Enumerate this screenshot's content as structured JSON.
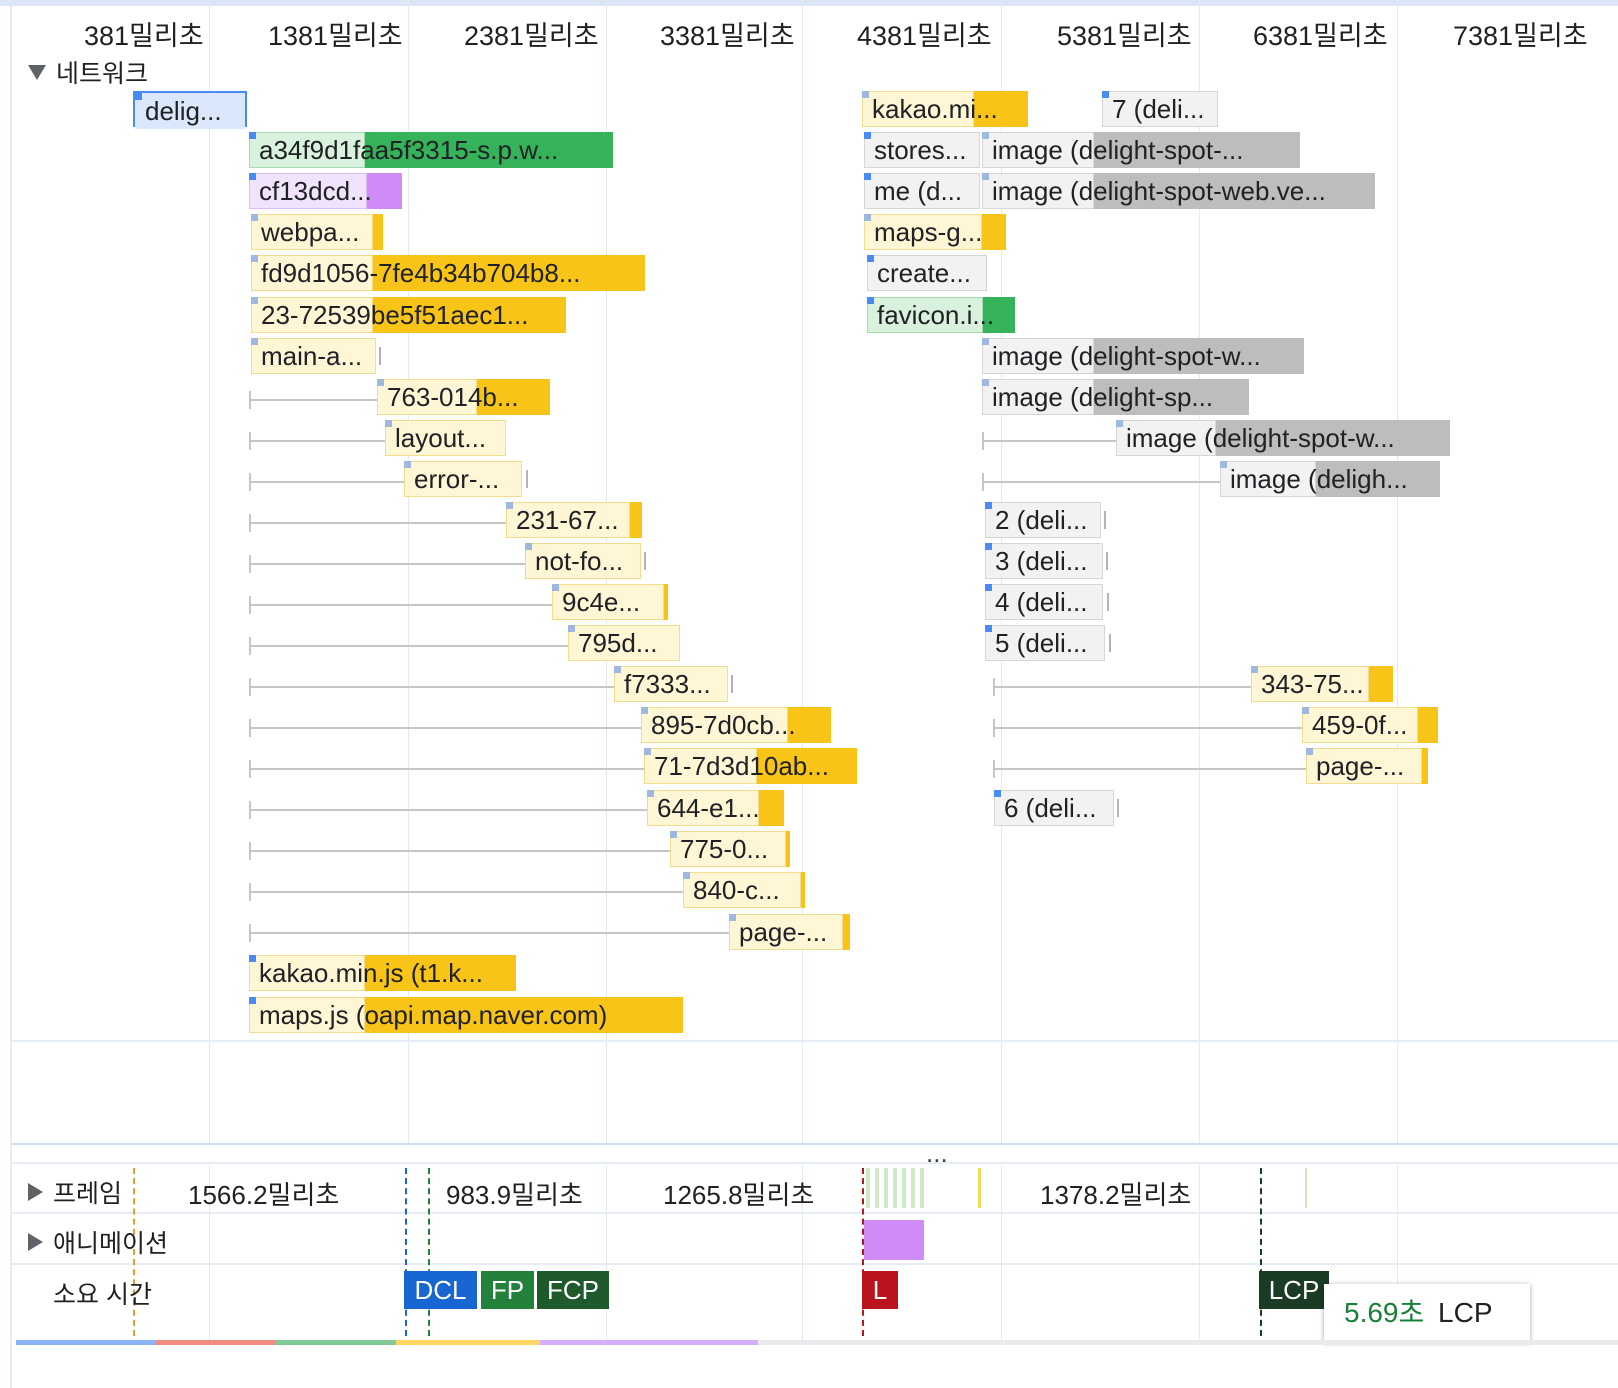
{
  "ruler": {
    "ticks": [
      "381밀리초",
      "1381밀리초",
      "2381밀리초",
      "3381밀리초",
      "4381밀리초",
      "5381밀리초",
      "6381밀리초",
      "7381밀리초"
    ]
  },
  "network": {
    "section_label": "네트워크",
    "requests": [
      {
        "label": "delig...",
        "type": "selected"
      },
      {
        "label": "a34f9d1faa5f3315-s.p.w...",
        "type": "font"
      },
      {
        "label": "cf13dcd...",
        "type": "style"
      },
      {
        "label": "webpa...",
        "type": "script"
      },
      {
        "label": "fd9d1056-7fe4b34b704b8...",
        "type": "script"
      },
      {
        "label": "23-72539be5f51aec1...",
        "type": "script"
      },
      {
        "label": "main-a...",
        "type": "script"
      },
      {
        "label": "763-014b...",
        "type": "script"
      },
      {
        "label": "layout...",
        "type": "script"
      },
      {
        "label": "error-...",
        "type": "script"
      },
      {
        "label": "231-67...",
        "type": "script"
      },
      {
        "label": "not-fo...",
        "type": "script"
      },
      {
        "label": "9c4e...",
        "type": "script"
      },
      {
        "label": "795d...",
        "type": "script"
      },
      {
        "label": "f7333...",
        "type": "script"
      },
      {
        "label": "895-7d0cb...",
        "type": "script"
      },
      {
        "label": "71-7d3d10ab...",
        "type": "script"
      },
      {
        "label": "644-e1...",
        "type": "script"
      },
      {
        "label": "775-0...",
        "type": "script"
      },
      {
        "label": "840-c...",
        "type": "script"
      },
      {
        "label": "page-...",
        "type": "script"
      },
      {
        "label": "kakao.min.js (t1.k...",
        "type": "script"
      },
      {
        "label": "maps.js (oapi.map.naver.com)",
        "type": "script"
      },
      {
        "label": "kakao.mi...",
        "type": "script"
      },
      {
        "label": "stores...",
        "type": "other"
      },
      {
        "label": "me (d...",
        "type": "other"
      },
      {
        "label": "maps-g...",
        "type": "script"
      },
      {
        "label": "create...",
        "type": "other"
      },
      {
        "label": "favicon.i...",
        "type": "image"
      },
      {
        "label": "7 (deli...",
        "type": "other"
      },
      {
        "label": "image (delight-spot-...",
        "type": "other"
      },
      {
        "label": "image (delight-spot-web.ve...",
        "type": "other"
      },
      {
        "label": "image (delight-spot-w...",
        "type": "other"
      },
      {
        "label": "image (delight-sp...",
        "type": "other"
      },
      {
        "label": "image (delight-spot-w...",
        "type": "other"
      },
      {
        "label": "image (deligh...",
        "type": "other"
      },
      {
        "label": "2 (deli...",
        "type": "other"
      },
      {
        "label": "3 (deli...",
        "type": "other"
      },
      {
        "label": "4 (deli...",
        "type": "other"
      },
      {
        "label": "5 (deli...",
        "type": "other"
      },
      {
        "label": "343-75...",
        "type": "script"
      },
      {
        "label": "459-0f...",
        "type": "script"
      },
      {
        "label": "page-...",
        "type": "script"
      },
      {
        "label": "6 (deli...",
        "type": "other"
      }
    ]
  },
  "more_indicator": "...",
  "tracks": {
    "frames_label": "프레임",
    "animations_label": "애니메이션",
    "timings_label": "소요 시간",
    "frame_durations": [
      "1566.2밀리초",
      "983.9밀리초",
      "1265.8밀리초",
      "1378.2밀리초"
    ]
  },
  "markers": {
    "dcl": "DCL",
    "fp": "FP",
    "fcp": "FCP",
    "l": "L",
    "lcp": "LCP"
  },
  "tooltip": {
    "value": "5.69초",
    "name": "LCP"
  },
  "colors": {
    "script_wait": "#fff6d6",
    "script_dl": "#f7c417",
    "font_wait": "#d9f2dd",
    "font_dl": "#34b35a",
    "style_wait": "#f1e3fc",
    "style_dl": "#cf8cf8",
    "other_wait": "#f2f2f2",
    "other_dl": "#bdbdbd",
    "selected": "#dbe7fb",
    "dcl": "#1766d1",
    "fp": "#23813b",
    "fcp": "#1f5a2d",
    "l": "#b9141b",
    "lcp": "#1b3b25",
    "animation": "#d08cf6"
  }
}
